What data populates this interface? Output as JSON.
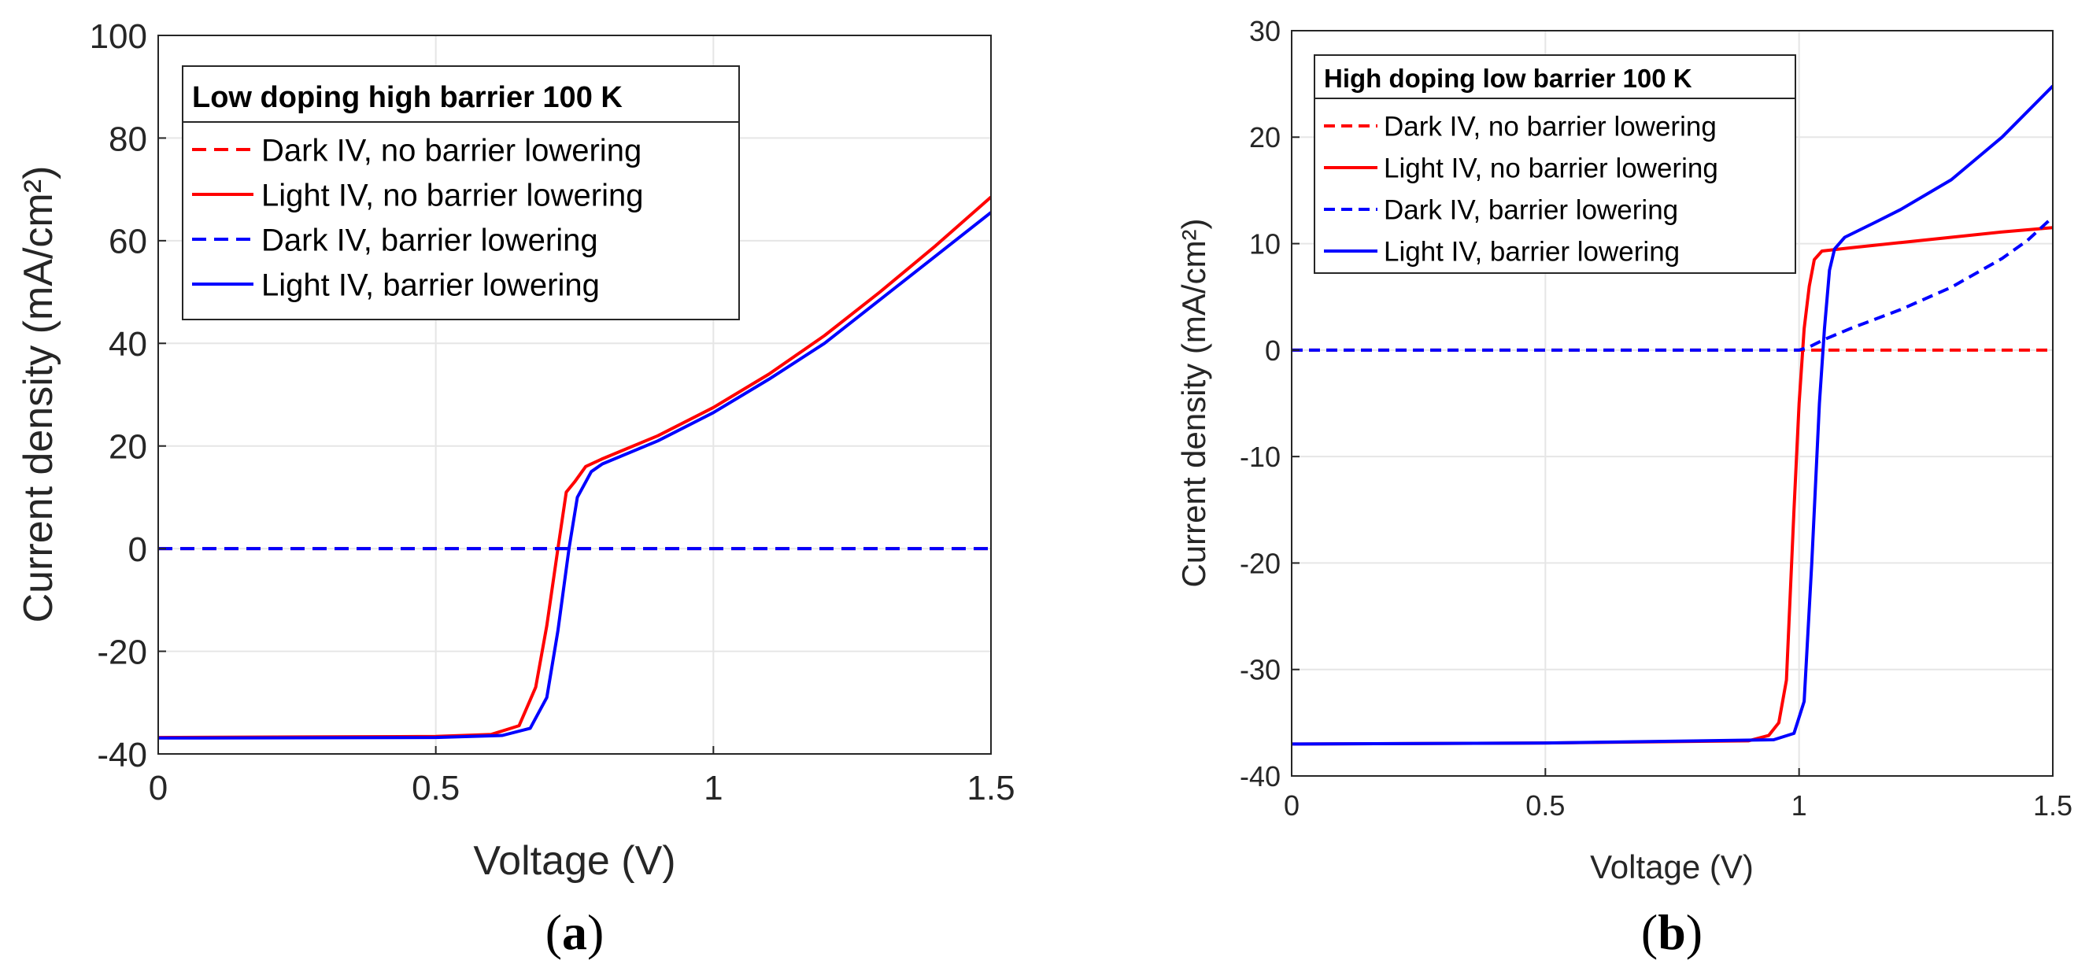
{
  "chart_data": [
    {
      "type": "line",
      "panel_label": "a",
      "legend_title": "Low doping high barrier 100 K",
      "xlabel": "Voltage (V)",
      "ylabel": "Current density (mA/cm²)",
      "xlim": [
        0,
        1.5
      ],
      "ylim": [
        -40,
        100
      ],
      "xticks": [
        0,
        0.5,
        1,
        1.5
      ],
      "xtick_labels": [
        "0",
        "0.5",
        "1",
        "1.5"
      ],
      "yticks": [
        -40,
        -20,
        0,
        20,
        40,
        60,
        80,
        100
      ],
      "ytick_labels": [
        "-40",
        "-20",
        "0",
        "20",
        "40",
        "60",
        "80",
        "100"
      ],
      "grid": true,
      "legend_location": "top-left",
      "series": [
        {
          "name": "Dark IV, no barrier lowering",
          "color": "#ff0000",
          "style": "dashed",
          "x": [
            0,
            1.5
          ],
          "y": [
            0,
            0
          ]
        },
        {
          "name": "Light IV, no barrier lowering",
          "color": "#ff0000",
          "style": "solid",
          "x": [
            0,
            0.5,
            0.6,
            0.65,
            0.68,
            0.7,
            0.72,
            0.735,
            0.75,
            0.77,
            0.8,
            0.9,
            1.0,
            1.1,
            1.2,
            1.3,
            1.4,
            1.5
          ],
          "y": [
            -36.8,
            -36.6,
            -36.2,
            -34.5,
            -27,
            -15,
            0,
            11,
            13,
            16,
            17.5,
            22,
            27.5,
            34,
            41.5,
            50,
            59,
            68.5
          ]
        },
        {
          "name": "Dark IV, barrier lowering",
          "color": "#0000ff",
          "style": "dashed",
          "x": [
            0,
            1.5
          ],
          "y": [
            0,
            0
          ]
        },
        {
          "name": "Light IV, barrier lowering",
          "color": "#0000ff",
          "style": "solid",
          "x": [
            0,
            0.5,
            0.62,
            0.67,
            0.7,
            0.72,
            0.74,
            0.755,
            0.77,
            0.78,
            0.8,
            0.9,
            1.0,
            1.1,
            1.2,
            1.3,
            1.4,
            1.5
          ],
          "y": [
            -36.9,
            -36.8,
            -36.4,
            -35,
            -29,
            -16,
            0,
            10,
            13,
            15,
            16.5,
            21,
            26.5,
            33,
            40,
            48.5,
            57,
            65.5
          ]
        }
      ]
    },
    {
      "type": "line",
      "panel_label": "b",
      "legend_title": "High doping low barrier 100 K",
      "xlabel": "Voltage (V)",
      "ylabel": "Current density (mA/cm²)",
      "xlim": [
        0,
        1.5
      ],
      "ylim": [
        -40,
        30
      ],
      "xticks": [
        0,
        0.5,
        1,
        1.5
      ],
      "xtick_labels": [
        "0",
        "0.5",
        "1",
        "1.5"
      ],
      "yticks": [
        -40,
        -30,
        -20,
        -10,
        0,
        10,
        20,
        30
      ],
      "ytick_labels": [
        "-40",
        "-30",
        "-20",
        "-10",
        "0",
        "10",
        "20",
        "30"
      ],
      "grid": true,
      "legend_location": "top-left",
      "series": [
        {
          "name": "Dark IV, no barrier lowering",
          "color": "#ff0000",
          "style": "dashed",
          "x": [
            0,
            1.5
          ],
          "y": [
            0,
            0
          ]
        },
        {
          "name": "Light IV, no barrier lowering",
          "color": "#ff0000",
          "style": "solid",
          "x": [
            0,
            0.5,
            0.9,
            0.94,
            0.96,
            0.975,
            0.99,
            1.0,
            1.01,
            1.02,
            1.03,
            1.045,
            1.1,
            1.2,
            1.3,
            1.4,
            1.5
          ],
          "y": [
            -37,
            -36.9,
            -36.7,
            -36.2,
            -35,
            -31,
            -15,
            -5,
            2,
            6,
            8.5,
            9.3,
            9.6,
            10.1,
            10.6,
            11.1,
            11.5
          ]
        },
        {
          "name": "Dark IV, barrier lowering",
          "color": "#0000ff",
          "style": "dashed",
          "x": [
            0,
            1.0,
            1.02,
            1.05,
            1.1,
            1.2,
            1.3,
            1.4,
            1.45,
            1.5
          ],
          "y": [
            0,
            0,
            0.3,
            1.0,
            2.0,
            3.8,
            5.9,
            8.6,
            10.3,
            12.5
          ]
        },
        {
          "name": "Light IV, barrier lowering",
          "color": "#0000ff",
          "style": "solid",
          "x": [
            0,
            0.5,
            0.95,
            0.99,
            1.01,
            1.025,
            1.04,
            1.05,
            1.06,
            1.07,
            1.09,
            1.15,
            1.2,
            1.3,
            1.4,
            1.5
          ],
          "y": [
            -37,
            -36.9,
            -36.6,
            -36,
            -33,
            -20,
            -5,
            2,
            7.5,
            9.5,
            10.6,
            12,
            13.2,
            16,
            20,
            24.8
          ]
        }
      ]
    }
  ]
}
